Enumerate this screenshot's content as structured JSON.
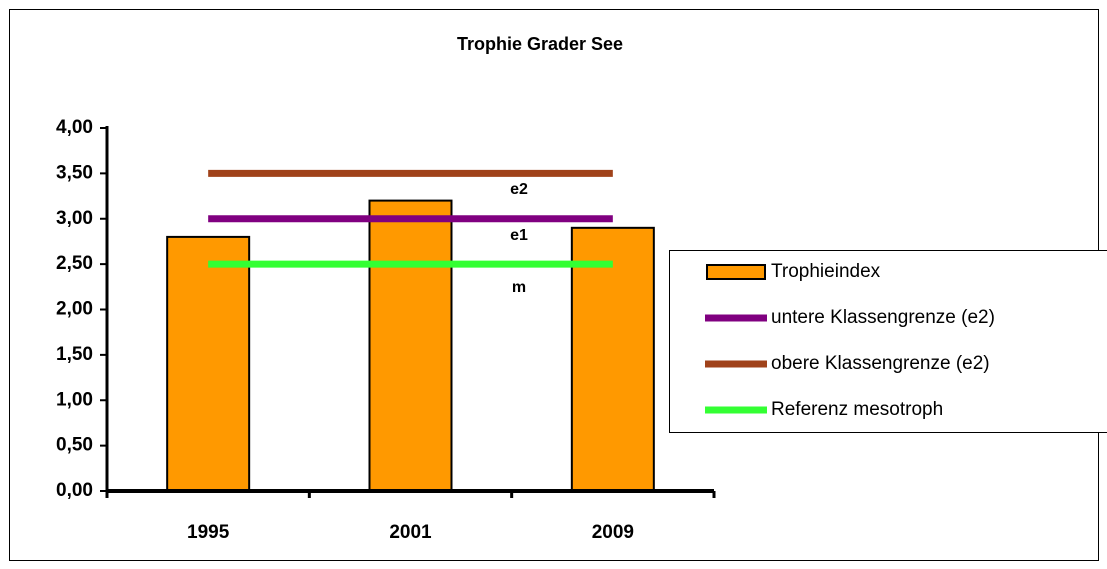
{
  "chart_data": {
    "type": "bar",
    "title": "Trophie Grader See",
    "categories": [
      "1995",
      "2001",
      "2009"
    ],
    "series": [
      {
        "name": "Trophieindex",
        "type": "bar",
        "color": "#ff9900",
        "values": [
          2.8,
          3.2,
          2.9
        ]
      },
      {
        "name": "untere Klassengrenze (e2)",
        "type": "line",
        "color": "#800080",
        "values": [
          3.0,
          3.0,
          3.0
        ]
      },
      {
        "name": "obere Klassengrenze (e2)",
        "type": "line",
        "color": "#a0421a",
        "values": [
          3.5,
          3.5,
          3.5
        ]
      },
      {
        "name": "Referenz mesotroph",
        "type": "line",
        "color": "#33ff33",
        "values": [
          2.5,
          2.5,
          2.5
        ]
      }
    ],
    "annotations": [
      "e2",
      "e1",
      "m"
    ],
    "ylim": [
      0,
      4
    ],
    "yticks": [
      {
        "value": 0,
        "label": "0,00"
      },
      {
        "value": 0.5,
        "label": "0,50"
      },
      {
        "value": 1,
        "label": "1,00"
      },
      {
        "value": 1.5,
        "label": "1,50"
      },
      {
        "value": 2,
        "label": "2,00"
      },
      {
        "value": 2.5,
        "label": "2,50"
      },
      {
        "value": 3,
        "label": "3,00"
      },
      {
        "value": 3.5,
        "label": "3,50"
      },
      {
        "value": 4,
        "label": "4,00"
      }
    ],
    "legend": "right"
  }
}
